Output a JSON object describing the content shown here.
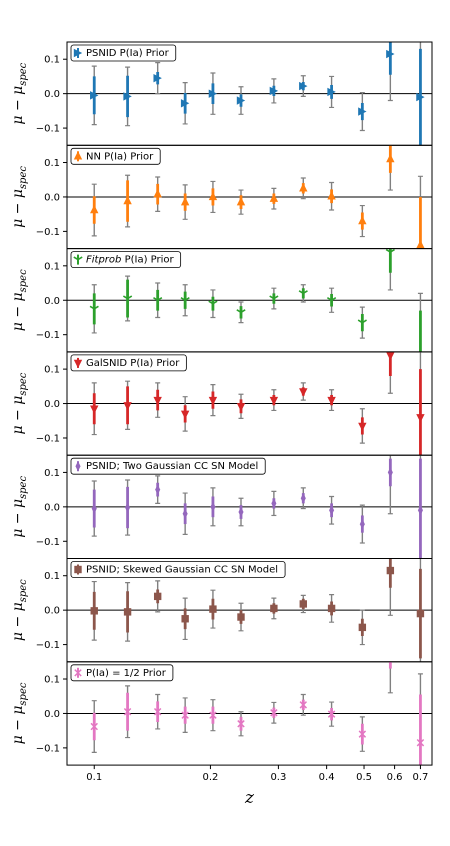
{
  "chart_data": {
    "type": "scatter",
    "xscale": "log",
    "xlabel": "z",
    "ylabel": "μ − μ_spec",
    "xlim": [
      0.085,
      0.75
    ],
    "ylim": [
      -0.15,
      0.15
    ],
    "x_ticks": [
      0.1,
      0.2,
      0.3,
      0.4,
      0.5,
      0.6,
      0.7
    ],
    "x_tick_labels": [
      "0.1",
      "0.2",
      "0.3",
      "0.4",
      "0.5",
      "0.6",
      "0.7"
    ],
    "y_ticks": [
      -0.1,
      0.0,
      0.1
    ],
    "y_tick_labels": [
      "−0.1",
      "0.0",
      "0.1"
    ],
    "gray_errorbar_color": "#808080",
    "panels": [
      {
        "legend": "PSNID P(Ia) Prior",
        "color": "#1f77b4",
        "marker": "tri_right",
        "points": [
          {
            "x": 0.1,
            "y": -0.005,
            "total_err": 0.085,
            "sub_err": 0.055
          },
          {
            "x": 0.122,
            "y": -0.008,
            "total_err": 0.085,
            "sub_err": 0.06
          },
          {
            "x": 0.146,
            "y": 0.045,
            "total_err": 0.045,
            "sub_err": 0.018
          },
          {
            "x": 0.172,
            "y": -0.028,
            "total_err": 0.06,
            "sub_err": 0.03
          },
          {
            "x": 0.203,
            "y": 0.0,
            "total_err": 0.06,
            "sub_err": 0.03
          },
          {
            "x": 0.24,
            "y": -0.02,
            "total_err": 0.04,
            "sub_err": 0.018
          },
          {
            "x": 0.292,
            "y": 0.008,
            "total_err": 0.035,
            "sub_err": 0.015
          },
          {
            "x": 0.348,
            "y": 0.022,
            "total_err": 0.03,
            "sub_err": 0.012
          },
          {
            "x": 0.412,
            "y": 0.005,
            "total_err": 0.045,
            "sub_err": 0.02
          },
          {
            "x": 0.495,
            "y": -0.052,
            "total_err": 0.055,
            "sub_err": 0.025
          },
          {
            "x": 0.585,
            "y": 0.115,
            "total_err": 0.135,
            "sub_err": 0.06
          },
          {
            "x": 0.7,
            "y": -0.01,
            "total_err": 0.2,
            "sub_err": 0.14
          }
        ]
      },
      {
        "legend": "NN P(Ia) Prior",
        "color": "#ff7f0e",
        "marker": "triangle_up",
        "points": [
          {
            "x": 0.1,
            "y": -0.038,
            "total_err": 0.075,
            "sub_err": 0.04
          },
          {
            "x": 0.122,
            "y": -0.012,
            "total_err": 0.075,
            "sub_err": 0.06
          },
          {
            "x": 0.146,
            "y": 0.008,
            "total_err": 0.05,
            "sub_err": 0.03
          },
          {
            "x": 0.172,
            "y": -0.015,
            "total_err": 0.05,
            "sub_err": 0.025
          },
          {
            "x": 0.203,
            "y": 0.0,
            "total_err": 0.045,
            "sub_err": 0.025
          },
          {
            "x": 0.24,
            "y": -0.015,
            "total_err": 0.035,
            "sub_err": 0.02
          },
          {
            "x": 0.292,
            "y": -0.005,
            "total_err": 0.03,
            "sub_err": 0.015
          },
          {
            "x": 0.348,
            "y": 0.025,
            "total_err": 0.03,
            "sub_err": 0.015
          },
          {
            "x": 0.412,
            "y": 0.002,
            "total_err": 0.04,
            "sub_err": 0.02
          },
          {
            "x": 0.495,
            "y": -0.07,
            "total_err": 0.045,
            "sub_err": 0.025
          },
          {
            "x": 0.585,
            "y": 0.11,
            "total_err": 0.09,
            "sub_err": 0.04
          },
          {
            "x": 0.7,
            "y": -0.14,
            "total_err": 0.2,
            "sub_err": 0.14
          }
        ]
      },
      {
        "legend_italic": "Fitprob",
        "legend": " P(Ia) Prior",
        "color": "#2ca02c",
        "marker": "tri_down",
        "points": [
          {
            "x": 0.1,
            "y": -0.025,
            "total_err": 0.07,
            "sub_err": 0.045
          },
          {
            "x": 0.122,
            "y": 0.005,
            "total_err": 0.065,
            "sub_err": 0.055
          },
          {
            "x": 0.146,
            "y": 0.0,
            "total_err": 0.05,
            "sub_err": 0.03
          },
          {
            "x": 0.172,
            "y": 0.0,
            "total_err": 0.045,
            "sub_err": 0.025
          },
          {
            "x": 0.203,
            "y": -0.01,
            "total_err": 0.04,
            "sub_err": 0.02
          },
          {
            "x": 0.24,
            "y": -0.035,
            "total_err": 0.03,
            "sub_err": 0.018
          },
          {
            "x": 0.292,
            "y": 0.005,
            "total_err": 0.03,
            "sub_err": 0.015
          },
          {
            "x": 0.348,
            "y": 0.02,
            "total_err": 0.025,
            "sub_err": 0.015
          },
          {
            "x": 0.412,
            "y": 0.0,
            "total_err": 0.035,
            "sub_err": 0.018
          },
          {
            "x": 0.495,
            "y": -0.065,
            "total_err": 0.045,
            "sub_err": 0.025
          },
          {
            "x": 0.585,
            "y": 0.14,
            "total_err": 0.11,
            "sub_err": 0.06
          },
          {
            "x": 0.7,
            "y": -0.18,
            "total_err": 0.2,
            "sub_err": 0.15
          }
        ]
      },
      {
        "legend": "GalSNID P(Ia) Prior",
        "color": "#d62728",
        "marker": "triangle_down",
        "points": [
          {
            "x": 0.1,
            "y": -0.015,
            "total_err": 0.075,
            "sub_err": 0.045
          },
          {
            "x": 0.122,
            "y": -0.005,
            "total_err": 0.07,
            "sub_err": 0.055
          },
          {
            "x": 0.146,
            "y": 0.01,
            "total_err": 0.05,
            "sub_err": 0.03
          },
          {
            "x": 0.172,
            "y": -0.03,
            "total_err": 0.05,
            "sub_err": 0.025
          },
          {
            "x": 0.203,
            "y": 0.01,
            "total_err": 0.045,
            "sub_err": 0.025
          },
          {
            "x": 0.24,
            "y": -0.008,
            "total_err": 0.035,
            "sub_err": 0.02
          },
          {
            "x": 0.292,
            "y": 0.01,
            "total_err": 0.03,
            "sub_err": 0.015
          },
          {
            "x": 0.348,
            "y": 0.035,
            "total_err": 0.025,
            "sub_err": 0.012
          },
          {
            "x": 0.412,
            "y": 0.01,
            "total_err": 0.03,
            "sub_err": 0.015
          },
          {
            "x": 0.495,
            "y": -0.065,
            "total_err": 0.05,
            "sub_err": 0.025
          },
          {
            "x": 0.585,
            "y": 0.14,
            "total_err": 0.11,
            "sub_err": 0.06
          },
          {
            "x": 0.7,
            "y": -0.04,
            "total_err": 0.2,
            "sub_err": 0.14
          }
        ]
      },
      {
        "legend": "PSNID; Two Gaussian CC SN Model",
        "color": "#9467bd",
        "marker": "thin_diamond",
        "points": [
          {
            "x": 0.1,
            "y": -0.005,
            "total_err": 0.08,
            "sub_err": 0.055
          },
          {
            "x": 0.122,
            "y": -0.002,
            "total_err": 0.08,
            "sub_err": 0.06
          },
          {
            "x": 0.146,
            "y": 0.05,
            "total_err": 0.04,
            "sub_err": 0.02
          },
          {
            "x": 0.172,
            "y": -0.02,
            "total_err": 0.06,
            "sub_err": 0.03
          },
          {
            "x": 0.203,
            "y": 0.0,
            "total_err": 0.055,
            "sub_err": 0.03
          },
          {
            "x": 0.24,
            "y": -0.015,
            "total_err": 0.04,
            "sub_err": 0.02
          },
          {
            "x": 0.292,
            "y": 0.01,
            "total_err": 0.035,
            "sub_err": 0.015
          },
          {
            "x": 0.348,
            "y": 0.025,
            "total_err": 0.03,
            "sub_err": 0.015
          },
          {
            "x": 0.412,
            "y": -0.01,
            "total_err": 0.04,
            "sub_err": 0.02
          },
          {
            "x": 0.495,
            "y": -0.05,
            "total_err": 0.055,
            "sub_err": 0.025
          },
          {
            "x": 0.585,
            "y": 0.1,
            "total_err": 0.12,
            "sub_err": 0.04
          },
          {
            "x": 0.7,
            "y": -0.01,
            "total_err": 0.2,
            "sub_err": 0.15
          }
        ]
      },
      {
        "legend": "PSNID; Skewed Gaussian CC SN Model",
        "color": "#8c564b",
        "marker": "square",
        "points": [
          {
            "x": 0.1,
            "y": -0.002,
            "total_err": 0.085,
            "sub_err": 0.055
          },
          {
            "x": 0.122,
            "y": -0.005,
            "total_err": 0.085,
            "sub_err": 0.06
          },
          {
            "x": 0.146,
            "y": 0.04,
            "total_err": 0.045,
            "sub_err": 0.02
          },
          {
            "x": 0.172,
            "y": -0.025,
            "total_err": 0.06,
            "sub_err": 0.03
          },
          {
            "x": 0.203,
            "y": 0.003,
            "total_err": 0.055,
            "sub_err": 0.03
          },
          {
            "x": 0.24,
            "y": -0.02,
            "total_err": 0.04,
            "sub_err": 0.02
          },
          {
            "x": 0.292,
            "y": 0.005,
            "total_err": 0.03,
            "sub_err": 0.015
          },
          {
            "x": 0.348,
            "y": 0.018,
            "total_err": 0.025,
            "sub_err": 0.015
          },
          {
            "x": 0.412,
            "y": 0.005,
            "total_err": 0.04,
            "sub_err": 0.02
          },
          {
            "x": 0.495,
            "y": -0.05,
            "total_err": 0.05,
            "sub_err": 0.025
          },
          {
            "x": 0.585,
            "y": 0.115,
            "total_err": 0.13,
            "sub_err": 0.05
          },
          {
            "x": 0.7,
            "y": -0.01,
            "total_err": 0.2,
            "sub_err": 0.13
          }
        ]
      },
      {
        "legend": "P(Ia) = 1/2 Prior",
        "color": "#e377c2",
        "marker": "x",
        "points": [
          {
            "x": 0.1,
            "y": -0.038,
            "total_err": 0.075,
            "sub_err": 0.04
          },
          {
            "x": 0.122,
            "y": 0.005,
            "total_err": 0.075,
            "sub_err": 0.055
          },
          {
            "x": 0.146,
            "y": 0.005,
            "total_err": 0.05,
            "sub_err": 0.03
          },
          {
            "x": 0.172,
            "y": -0.005,
            "total_err": 0.05,
            "sub_err": 0.025
          },
          {
            "x": 0.203,
            "y": -0.005,
            "total_err": 0.045,
            "sub_err": 0.025
          },
          {
            "x": 0.24,
            "y": -0.03,
            "total_err": 0.035,
            "sub_err": 0.02
          },
          {
            "x": 0.292,
            "y": 0.002,
            "total_err": 0.03,
            "sub_err": 0.015
          },
          {
            "x": 0.348,
            "y": 0.025,
            "total_err": 0.03,
            "sub_err": 0.015
          },
          {
            "x": 0.412,
            "y": -0.002,
            "total_err": 0.035,
            "sub_err": 0.018
          },
          {
            "x": 0.495,
            "y": -0.06,
            "total_err": 0.05,
            "sub_err": 0.03
          },
          {
            "x": 0.585,
            "y": 0.16,
            "total_err": 0.1,
            "sub_err": 0.03
          },
          {
            "x": 0.7,
            "y": -0.085,
            "total_err": 0.2,
            "sub_err": 0.14
          }
        ]
      }
    ]
  }
}
